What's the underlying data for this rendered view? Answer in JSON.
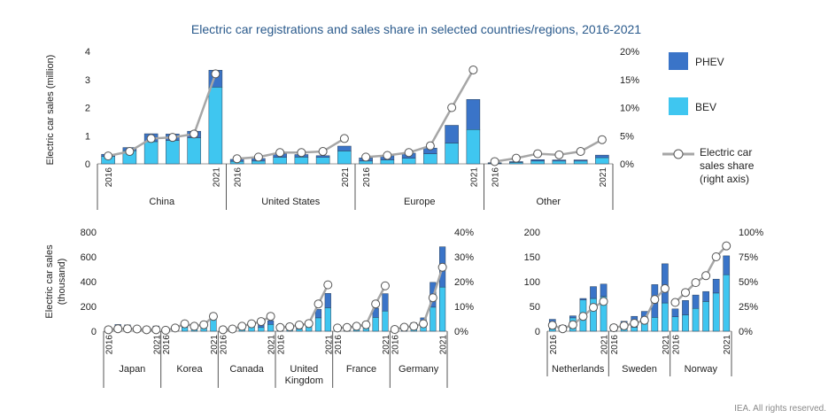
{
  "title": "Electric car registrations and sales share in selected countries/regions, 2016-2021",
  "credit": "IEA. All rights reserved.",
  "colors": {
    "bev": "#3fc6f0",
    "phev": "#3a74c8",
    "share_line": "#a6a6a6",
    "title": "#2a5a8c"
  },
  "legend": {
    "phev": "PHEV",
    "bev": "BEV",
    "share_line_1": "Electric car",
    "share_line_2": "sales share",
    "share_line_3": "(right axis)"
  },
  "chart_data": [
    {
      "type": "bar",
      "ylabel": "Electric car sales (million)",
      "ylim": [
        0,
        4
      ],
      "y_ticks": [
        "0",
        "1",
        "2",
        "3",
        "4"
      ],
      "y2lim": [
        0,
        20
      ],
      "y2_ticks": [
        "0%",
        "5%",
        "10%",
        "15%",
        "20%"
      ],
      "year_start": "2016",
      "year_end": "2021",
      "groups": [
        {
          "name": "China",
          "bev": [
            0.26,
            0.47,
            0.79,
            0.83,
            0.93,
            2.73
          ],
          "phev": [
            0.08,
            0.11,
            0.28,
            0.23,
            0.23,
            0.6
          ],
          "share": [
            1.4,
            2.2,
            4.5,
            4.7,
            5.3,
            16.0
          ]
        },
        {
          "name": "United States",
          "bev": [
            0.09,
            0.1,
            0.23,
            0.24,
            0.23,
            0.46
          ],
          "phev": [
            0.07,
            0.09,
            0.13,
            0.09,
            0.06,
            0.17
          ],
          "share": [
            0.9,
            1.2,
            2.0,
            2.0,
            2.2,
            4.5
          ]
        },
        {
          "name": "Europe",
          "bev": [
            0.1,
            0.14,
            0.2,
            0.36,
            0.74,
            1.22
          ],
          "phev": [
            0.11,
            0.15,
            0.18,
            0.2,
            0.63,
            1.07
          ],
          "share": [
            1.2,
            1.5,
            2.0,
            3.2,
            10.0,
            16.7
          ]
        },
        {
          "name": "Other",
          "bev": [
            0.02,
            0.05,
            0.1,
            0.1,
            0.1,
            0.22
          ],
          "phev": [
            0.02,
            0.03,
            0.05,
            0.04,
            0.04,
            0.09
          ],
          "share": [
            0.4,
            1.0,
            1.8,
            1.6,
            2.2,
            4.3
          ]
        }
      ]
    },
    {
      "type": "bar",
      "ylabel_1": "Electric car sales",
      "ylabel_2": "(thousand)",
      "ylim": [
        0,
        800
      ],
      "y_ticks": [
        "0",
        "200",
        "400",
        "600",
        "800"
      ],
      "y2lim": [
        0,
        40
      ],
      "y2_ticks": [
        "0%",
        "10%",
        "20%",
        "30%",
        "40%"
      ],
      "year_start": "2016",
      "year_end": "2021",
      "groups": [
        {
          "name": "Japan",
          "bev": [
            15,
            18,
            26,
            21,
            15,
            21
          ],
          "phev": [
            9,
            36,
            25,
            18,
            14,
            21
          ],
          "share": [
            0.6,
            1.0,
            1.0,
            0.9,
            0.6,
            0.6
          ]
        },
        {
          "name": "Korea",
          "bev": [
            5,
            14,
            31,
            35,
            46,
            100
          ],
          "phev": [
            1,
            1,
            6,
            11,
            9,
            20
          ],
          "share": [
            0.4,
            1.3,
            3.0,
            2.0,
            2.6,
            6.0
          ]
        },
        {
          "name": "Canada",
          "bev": [
            5,
            9,
            24,
            35,
            30,
            55
          ],
          "phev": [
            6,
            11,
            21,
            21,
            24,
            30
          ],
          "share": [
            0.6,
            0.9,
            2.0,
            3.0,
            3.9,
            6.0
          ]
        },
        {
          "name": "United Kingdom",
          "bev": [
            11,
            14,
            16,
            38,
            108,
            190
          ],
          "phev": [
            28,
            35,
            44,
            35,
            68,
            115
          ],
          "share": [
            1.5,
            1.8,
            2.5,
            3.1,
            11.0,
            18.7
          ]
        },
        {
          "name": "France",
          "bev": [
            22,
            25,
            31,
            43,
            112,
            163
          ],
          "phev": [
            7,
            10,
            15,
            19,
            74,
            140
          ],
          "share": [
            1.3,
            1.5,
            2.0,
            2.6,
            11.0,
            18.3
          ]
        },
        {
          "name": "Germany",
          "bev": [
            11,
            25,
            36,
            63,
            194,
            356
          ],
          "phev": [
            13,
            29,
            32,
            45,
            200,
            325
          ],
          "share": [
            0.7,
            1.6,
            2.0,
            3.0,
            13.5,
            25.8
          ]
        }
      ]
    },
    {
      "type": "bar",
      "ylim": [
        0,
        200
      ],
      "y_ticks": [
        "0",
        "50",
        "100",
        "150",
        "200"
      ],
      "y2lim": [
        0,
        100
      ],
      "y2_ticks": [
        "0%",
        "25%",
        "50%",
        "75%",
        "100%"
      ],
      "year_start": "2016",
      "year_end": "2021",
      "groups": [
        {
          "name": "Netherlands",
          "bev": [
            4,
            10,
            27,
            63,
            66,
            70
          ],
          "phev": [
            20,
            2,
            4,
            3,
            24,
            25
          ],
          "share": [
            6.0,
            2.5,
            6.5,
            15.0,
            24.0,
            30.0
          ]
        },
        {
          "name": "Sweden",
          "bev": [
            3,
            4,
            8,
            16,
            28,
            57
          ],
          "phev": [
            10,
            16,
            22,
            24,
            66,
            79
          ],
          "share": [
            3.5,
            5.5,
            8.0,
            11.0,
            32.0,
            43.0
          ]
        },
        {
          "name": "Norway",
          "bev": [
            29,
            33,
            46,
            60,
            77,
            114
          ],
          "phev": [
            16,
            29,
            27,
            20,
            28,
            38
          ],
          "share": [
            29.0,
            39.0,
            49.0,
            56.0,
            75.0,
            86.0
          ]
        }
      ]
    }
  ]
}
